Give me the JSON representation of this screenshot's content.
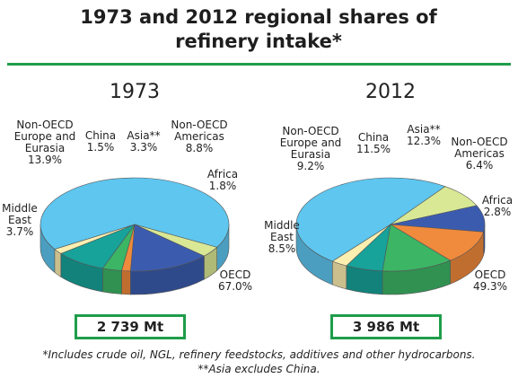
{
  "title": "1973 and 2012 regional shares of refinery intake*",
  "chart_data": [
    {
      "type": "pie",
      "title": "1973",
      "categories": [
        "OECD",
        "Middle East",
        "Non-OECD Europe and Eurasia",
        "China",
        "Asia**",
        "Non-OECD Americas",
        "Africa"
      ],
      "values": [
        67.0,
        3.7,
        13.9,
        1.5,
        3.3,
        8.8,
        1.8
      ],
      "value_labels": [
        "67.0%",
        "3.7%",
        "13.9%",
        "1.5%",
        "3.3%",
        "8.8%",
        "1.8%"
      ],
      "colors": [
        "#5ec6ef",
        "#d9e894",
        "#3b5cae",
        "#f08a3c",
        "#3cb565",
        "#17a29a",
        "#fcefb0"
      ],
      "total": "2 739 Mt"
    },
    {
      "type": "pie",
      "title": "2012",
      "categories": [
        "OECD",
        "Middle East",
        "Non-OECD Europe and Eurasia",
        "China",
        "Asia**",
        "Non-OECD Americas",
        "Africa"
      ],
      "values": [
        49.3,
        8.5,
        9.2,
        11.5,
        12.3,
        6.4,
        2.8
      ],
      "value_labels": [
        "49.3%",
        "8.5%",
        "9.2%",
        "11.5%",
        "12.3%",
        "6.4%",
        "2.8%"
      ],
      "colors": [
        "#5ec6ef",
        "#d9e894",
        "#3b5cae",
        "#f08a3c",
        "#3cb565",
        "#17a29a",
        "#fcefb0"
      ],
      "total": "3 986 Mt"
    }
  ],
  "footnotes": [
    "*Includes crude oil, NGL, refinery feedstocks, additives and other hydrocarbons.",
    "**Asia excludes China."
  ]
}
